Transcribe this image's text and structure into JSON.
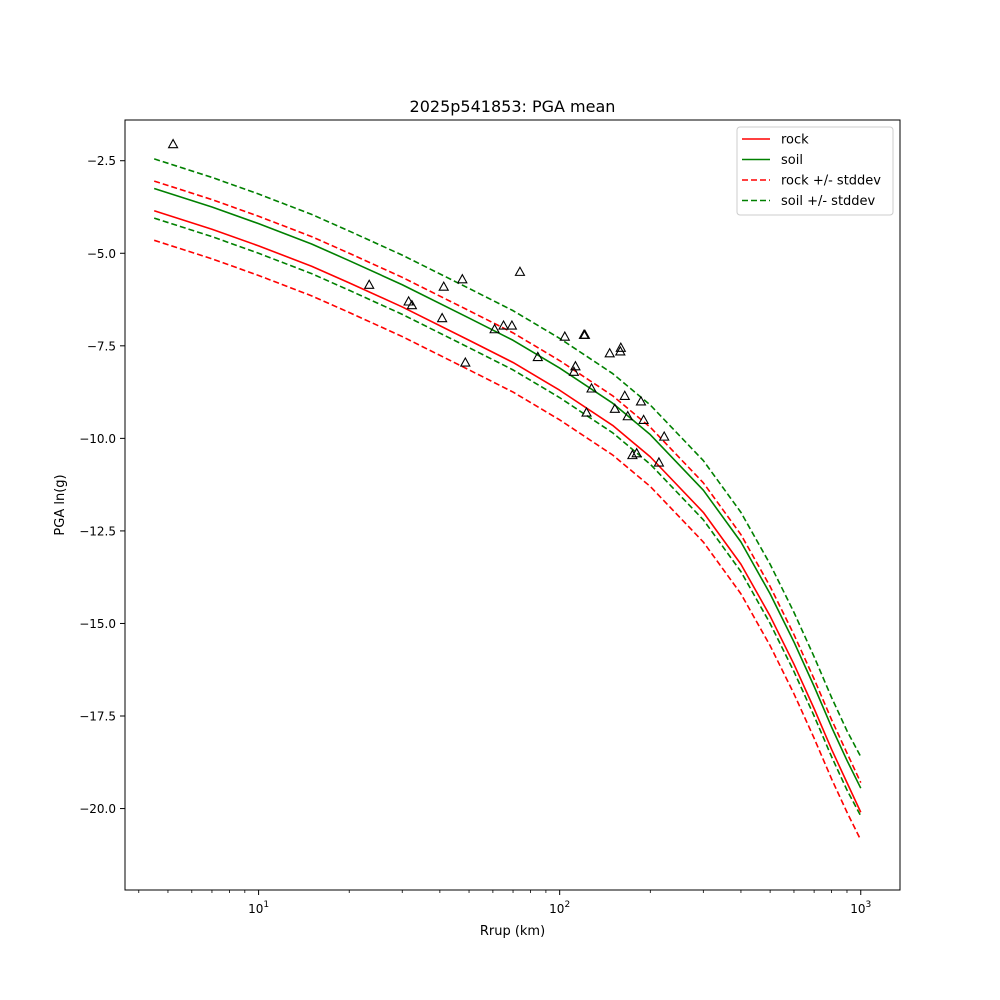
{
  "chart_data": {
    "type": "line",
    "title": "2025p541853: PGA mean",
    "xlabel": "Rrup (km)",
    "ylabel": "PGA ln(g)",
    "xscale": "log",
    "xlim": [
      3.6,
      1350
    ],
    "ylim": [
      -22.2,
      -1.4
    ],
    "grid": false,
    "legend_position": "top-right",
    "x_major_ticks": [
      {
        "value": 10,
        "base": "10",
        "exp": "1"
      },
      {
        "value": 100,
        "base": "10",
        "exp": "2"
      },
      {
        "value": 1000,
        "base": "10",
        "exp": "3"
      }
    ],
    "y_ticks": [
      {
        "value": -2.5,
        "label": "−2.5"
      },
      {
        "value": -5.0,
        "label": "−5.0"
      },
      {
        "value": -7.5,
        "label": "−7.5"
      },
      {
        "value": -10.0,
        "label": "−10.0"
      },
      {
        "value": -12.5,
        "label": "−12.5"
      },
      {
        "value": -15.0,
        "label": "−15.0"
      },
      {
        "value": -17.5,
        "label": "−17.5"
      },
      {
        "value": -20.0,
        "label": "−20.0"
      }
    ],
    "x": [
      4.5,
      7,
      10,
      15,
      20,
      30,
      50,
      70,
      100,
      150,
      200,
      300,
      400,
      500,
      600,
      700,
      800,
      900,
      1000
    ],
    "series": [
      {
        "name": "rock",
        "color": "#ff0000",
        "dash": "solid",
        "values": [
          -3.85,
          -4.35,
          -4.8,
          -5.35,
          -5.8,
          -6.45,
          -7.35,
          -7.95,
          -8.7,
          -9.65,
          -10.5,
          -12.0,
          -13.4,
          -14.8,
          -16.1,
          -17.3,
          -18.4,
          -19.3,
          -20.1
        ]
      },
      {
        "name": "soil",
        "color": "#008000",
        "dash": "solid",
        "values": [
          -3.25,
          -3.75,
          -4.2,
          -4.75,
          -5.2,
          -5.85,
          -6.75,
          -7.35,
          -8.1,
          -9.05,
          -9.9,
          -11.4,
          -12.8,
          -14.2,
          -15.5,
          -16.7,
          -17.8,
          -18.7,
          -19.45
        ]
      },
      {
        "name": "",
        "color": "#ff0000",
        "dash": "dashed",
        "values": [
          -3.05,
          -3.55,
          -4.0,
          -4.55,
          -5.0,
          -5.65,
          -6.55,
          -7.15,
          -7.9,
          -8.85,
          -9.7,
          -11.2,
          -12.6,
          -14.0,
          -15.3,
          -16.5,
          -17.6,
          -18.5,
          -19.3
        ]
      },
      {
        "name": "",
        "color": "#ff0000",
        "dash": "dashed",
        "values": [
          -4.65,
          -5.15,
          -5.6,
          -6.15,
          -6.6,
          -7.25,
          -8.15,
          -8.75,
          -9.5,
          -10.45,
          -11.3,
          -12.8,
          -14.2,
          -15.6,
          -16.9,
          -18.1,
          -19.2,
          -20.1,
          -20.85
        ]
      },
      {
        "name": "",
        "color": "#008000",
        "dash": "dashed",
        "values": [
          -2.45,
          -2.95,
          -3.4,
          -3.95,
          -4.4,
          -5.05,
          -5.95,
          -6.55,
          -7.3,
          -8.25,
          -9.1,
          -10.6,
          -12.0,
          -13.4,
          -14.7,
          -15.9,
          -17.0,
          -17.9,
          -18.6
        ]
      },
      {
        "name": "",
        "color": "#008000",
        "dash": "dashed",
        "values": [
          -4.05,
          -4.55,
          -5.0,
          -5.55,
          -6.0,
          -6.65,
          -7.55,
          -8.15,
          -8.9,
          -9.85,
          -10.7,
          -12.2,
          -13.6,
          -15.0,
          -16.3,
          -17.5,
          -18.6,
          -19.5,
          -20.2
        ]
      }
    ],
    "legend": [
      {
        "label": "rock",
        "color": "#ff0000",
        "dash": "solid"
      },
      {
        "label": "soil",
        "color": "#008000",
        "dash": "solid"
      },
      {
        "label": "rock +/- stddev",
        "color": "#ff0000",
        "dash": "dashed"
      },
      {
        "label": "soil +/- stddev",
        "color": "#008000",
        "dash": "dashed"
      }
    ],
    "observations": {
      "marker": "triangle",
      "points": [
        [
          5.2,
          -2.05
        ],
        [
          23.3,
          -5.85
        ],
        [
          31.5,
          -6.3
        ],
        [
          32.3,
          -6.4
        ],
        [
          41.2,
          -5.9
        ],
        [
          40.7,
          -6.75
        ],
        [
          47.5,
          -5.7
        ],
        [
          48.6,
          -7.95
        ],
        [
          60.8,
          -7.05
        ],
        [
          65.1,
          -6.95
        ],
        [
          69.4,
          -6.95
        ],
        [
          73.8,
          -5.5
        ],
        [
          84.6,
          -7.8
        ],
        [
          104.0,
          -7.25
        ],
        [
          111.5,
          -8.2
        ],
        [
          112.8,
          -8.05
        ],
        [
          120.4,
          -7.2
        ],
        [
          121.3,
          -7.2
        ],
        [
          122.8,
          -9.3
        ],
        [
          127.6,
          -8.65
        ],
        [
          146.6,
          -7.7
        ],
        [
          152.5,
          -9.2
        ],
        [
          159.6,
          -7.55
        ],
        [
          159.0,
          -7.65
        ],
        [
          164.5,
          -8.85
        ],
        [
          168.3,
          -9.4
        ],
        [
          174.4,
          -10.45
        ],
        [
          180.2,
          -10.4
        ],
        [
          186.2,
          -9.0
        ],
        [
          190.0,
          -9.5
        ],
        [
          213.6,
          -10.65
        ],
        [
          222.4,
          -9.95
        ]
      ]
    }
  }
}
